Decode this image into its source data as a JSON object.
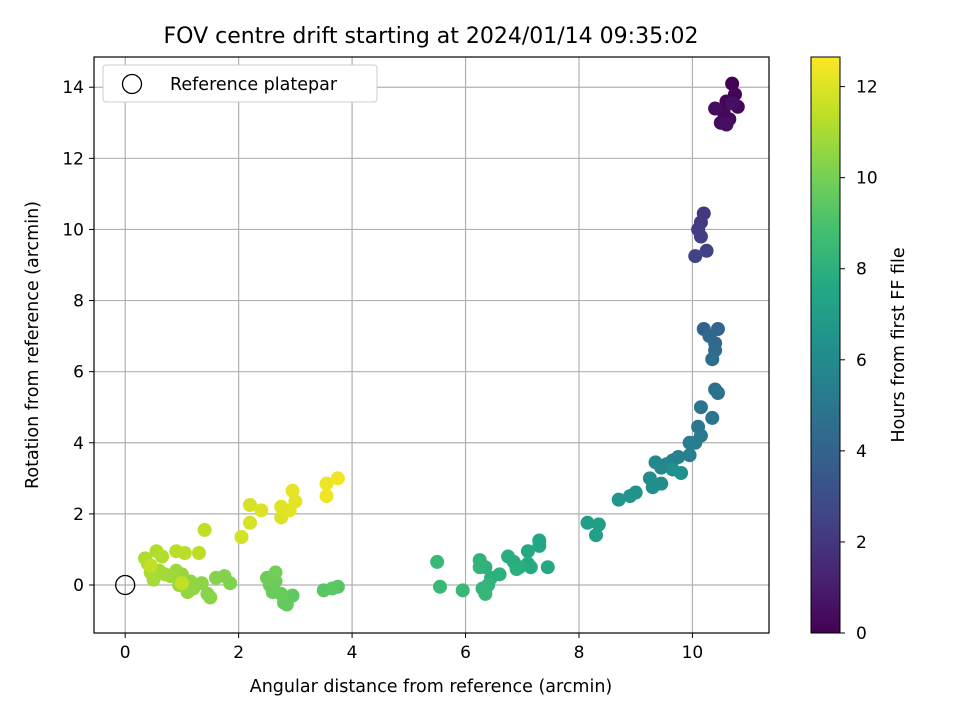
{
  "chart_data": {
    "type": "scatter",
    "title": "FOV centre drift starting at 2024/01/14 09:35:02",
    "xlabel": "Angular distance from reference (arcmin)",
    "ylabel": "Rotation from reference (arcmin)",
    "xlim": [
      -0.55,
      11.35
    ],
    "ylim": [
      -1.35,
      14.85
    ],
    "xticks": [
      0,
      2,
      4,
      6,
      8,
      10
    ],
    "yticks": [
      0,
      2,
      4,
      6,
      8,
      10,
      12,
      14
    ],
    "grid": true,
    "legend": {
      "placement": "top-left",
      "entries": [
        "Reference platepar"
      ]
    },
    "reference": {
      "x": 0,
      "y": 0
    },
    "colorbar": {
      "label": "Hours from first FF file",
      "range": [
        0,
        12.65
      ],
      "ticks": [
        0,
        2,
        4,
        6,
        8,
        10,
        12
      ],
      "colormap": "viridis"
    },
    "points": [
      {
        "x": 10.7,
        "y": 14.1,
        "h": 0.0
      },
      {
        "x": 10.75,
        "y": 13.8,
        "h": 0.1
      },
      {
        "x": 10.6,
        "y": 13.6,
        "h": 0.15
      },
      {
        "x": 10.8,
        "y": 13.45,
        "h": 0.2
      },
      {
        "x": 10.55,
        "y": 13.3,
        "h": 0.25
      },
      {
        "x": 10.65,
        "y": 13.1,
        "h": 0.3
      },
      {
        "x": 10.5,
        "y": 13.0,
        "h": 0.35
      },
      {
        "x": 10.4,
        "y": 13.4,
        "h": 0.45
      },
      {
        "x": 10.6,
        "y": 12.95,
        "h": 0.5
      },
      {
        "x": 10.7,
        "y": 13.55,
        "h": 0.55
      },
      {
        "x": 10.2,
        "y": 10.45,
        "h": 2.0
      },
      {
        "x": 10.15,
        "y": 10.2,
        "h": 2.1
      },
      {
        "x": 10.1,
        "y": 10.0,
        "h": 2.2
      },
      {
        "x": 10.15,
        "y": 9.8,
        "h": 2.3
      },
      {
        "x": 10.25,
        "y": 9.4,
        "h": 2.4
      },
      {
        "x": 10.05,
        "y": 9.25,
        "h": 2.5
      },
      {
        "x": 10.2,
        "y": 7.2,
        "h": 4.0
      },
      {
        "x": 10.45,
        "y": 7.2,
        "h": 4.1
      },
      {
        "x": 10.3,
        "y": 7.0,
        "h": 4.2
      },
      {
        "x": 10.4,
        "y": 6.8,
        "h": 4.3
      },
      {
        "x": 10.4,
        "y": 6.6,
        "h": 4.4
      },
      {
        "x": 10.35,
        "y": 6.35,
        "h": 4.5
      },
      {
        "x": 10.4,
        "y": 5.5,
        "h": 4.6
      },
      {
        "x": 10.45,
        "y": 5.4,
        "h": 4.7
      },
      {
        "x": 10.15,
        "y": 5.0,
        "h": 4.8
      },
      {
        "x": 10.35,
        "y": 4.7,
        "h": 4.9
      },
      {
        "x": 10.1,
        "y": 4.45,
        "h": 5.0
      },
      {
        "x": 10.15,
        "y": 4.2,
        "h": 5.1
      },
      {
        "x": 10.05,
        "y": 4.0,
        "h": 5.2
      },
      {
        "x": 9.95,
        "y": 4.0,
        "h": 5.3
      },
      {
        "x": 9.95,
        "y": 3.65,
        "h": 5.4
      },
      {
        "x": 9.75,
        "y": 3.6,
        "h": 5.5
      },
      {
        "x": 9.65,
        "y": 3.5,
        "h": 5.6
      },
      {
        "x": 9.55,
        "y": 3.4,
        "h": 5.7
      },
      {
        "x": 9.45,
        "y": 3.3,
        "h": 5.8
      },
      {
        "x": 9.35,
        "y": 3.45,
        "h": 5.9
      },
      {
        "x": 9.25,
        "y": 3.0,
        "h": 6.0
      },
      {
        "x": 9.45,
        "y": 2.85,
        "h": 6.1
      },
      {
        "x": 9.3,
        "y": 2.75,
        "h": 6.2
      },
      {
        "x": 9.65,
        "y": 3.25,
        "h": 6.25
      },
      {
        "x": 9.8,
        "y": 3.15,
        "h": 6.3
      },
      {
        "x": 9.0,
        "y": 2.6,
        "h": 6.4
      },
      {
        "x": 8.9,
        "y": 2.5,
        "h": 6.5
      },
      {
        "x": 8.7,
        "y": 2.4,
        "h": 6.6
      },
      {
        "x": 8.15,
        "y": 1.75,
        "h": 7.0
      },
      {
        "x": 8.35,
        "y": 1.7,
        "h": 7.05
      },
      {
        "x": 8.3,
        "y": 1.4,
        "h": 7.1
      },
      {
        "x": 7.3,
        "y": 1.25,
        "h": 7.5
      },
      {
        "x": 7.3,
        "y": 1.1,
        "h": 7.55
      },
      {
        "x": 7.1,
        "y": 0.95,
        "h": 7.6
      },
      {
        "x": 7.45,
        "y": 0.5,
        "h": 7.65
      },
      {
        "x": 7.1,
        "y": 0.6,
        "h": 7.7
      },
      {
        "x": 7.15,
        "y": 0.5,
        "h": 7.75
      },
      {
        "x": 6.95,
        "y": 0.5,
        "h": 7.8
      },
      {
        "x": 6.85,
        "y": 0.65,
        "h": 7.85
      },
      {
        "x": 6.75,
        "y": 0.8,
        "h": 7.9
      },
      {
        "x": 6.9,
        "y": 0.45,
        "h": 7.95
      },
      {
        "x": 6.6,
        "y": 0.3,
        "h": 8.0
      },
      {
        "x": 6.45,
        "y": 0.2,
        "h": 8.05
      },
      {
        "x": 6.25,
        "y": 0.7,
        "h": 8.1
      },
      {
        "x": 6.35,
        "y": 0.5,
        "h": 8.15
      },
      {
        "x": 6.25,
        "y": 0.5,
        "h": 8.2
      },
      {
        "x": 6.4,
        "y": 0.0,
        "h": 8.25
      },
      {
        "x": 6.3,
        "y": -0.1,
        "h": 8.3
      },
      {
        "x": 6.35,
        "y": -0.25,
        "h": 8.35
      },
      {
        "x": 5.95,
        "y": -0.15,
        "h": 8.4
      },
      {
        "x": 5.55,
        "y": -0.05,
        "h": 8.45
      },
      {
        "x": 5.5,
        "y": 0.65,
        "h": 8.5
      },
      {
        "x": 3.75,
        "y": -0.05,
        "h": 9.3
      },
      {
        "x": 3.5,
        "y": -0.15,
        "h": 9.35
      },
      {
        "x": 3.65,
        "y": -0.1,
        "h": 9.4
      },
      {
        "x": 2.95,
        "y": -0.3,
        "h": 9.5
      },
      {
        "x": 2.8,
        "y": -0.5,
        "h": 9.55
      },
      {
        "x": 2.85,
        "y": -0.55,
        "h": 9.6
      },
      {
        "x": 2.75,
        "y": -0.25,
        "h": 9.65
      },
      {
        "x": 2.6,
        "y": -0.2,
        "h": 9.7
      },
      {
        "x": 2.55,
        "y": 0.0,
        "h": 9.75
      },
      {
        "x": 2.65,
        "y": 0.1,
        "h": 9.8
      },
      {
        "x": 2.5,
        "y": 0.2,
        "h": 9.85
      },
      {
        "x": 2.65,
        "y": 0.35,
        "h": 9.9
      },
      {
        "x": 1.85,
        "y": 0.05,
        "h": 10.2
      },
      {
        "x": 1.75,
        "y": 0.25,
        "h": 10.25
      },
      {
        "x": 1.6,
        "y": 0.2,
        "h": 10.3
      },
      {
        "x": 1.45,
        "y": -0.25,
        "h": 10.35
      },
      {
        "x": 1.5,
        "y": -0.35,
        "h": 10.4
      },
      {
        "x": 1.35,
        "y": 0.05,
        "h": 10.45
      },
      {
        "x": 1.2,
        "y": -0.1,
        "h": 10.5
      },
      {
        "x": 1.15,
        "y": 0.1,
        "h": 10.55
      },
      {
        "x": 1.1,
        "y": -0.2,
        "h": 10.6
      },
      {
        "x": 1.0,
        "y": 0.3,
        "h": 10.65
      },
      {
        "x": 0.95,
        "y": 0.0,
        "h": 10.7
      },
      {
        "x": 0.9,
        "y": 0.4,
        "h": 10.75
      },
      {
        "x": 0.8,
        "y": 0.25,
        "h": 10.8
      },
      {
        "x": 0.7,
        "y": 0.3,
        "h": 10.85
      },
      {
        "x": 0.6,
        "y": 0.4,
        "h": 10.9
      },
      {
        "x": 0.5,
        "y": 0.15,
        "h": 10.95
      },
      {
        "x": 0.45,
        "y": 0.35,
        "h": 11.0
      },
      {
        "x": 0.4,
        "y": 0.6,
        "h": 11.05
      },
      {
        "x": 0.35,
        "y": 0.75,
        "h": 11.1
      },
      {
        "x": 0.55,
        "y": 0.95,
        "h": 11.15
      },
      {
        "x": 0.65,
        "y": 0.8,
        "h": 11.2
      },
      {
        "x": 0.9,
        "y": 0.95,
        "h": 11.25
      },
      {
        "x": 1.05,
        "y": 0.9,
        "h": 11.3
      },
      {
        "x": 1.3,
        "y": 0.9,
        "h": 11.35
      },
      {
        "x": 1.4,
        "y": 1.55,
        "h": 11.4
      },
      {
        "x": 0.45,
        "y": 0.55,
        "h": 11.45
      },
      {
        "x": 1.0,
        "y": 0.05,
        "h": 11.5
      },
      {
        "x": 2.05,
        "y": 1.35,
        "h": 11.8
      },
      {
        "x": 2.2,
        "y": 1.75,
        "h": 11.85
      },
      {
        "x": 2.2,
        "y": 2.25,
        "h": 11.9
      },
      {
        "x": 2.4,
        "y": 2.1,
        "h": 11.95
      },
      {
        "x": 2.75,
        "y": 1.9,
        "h": 12.0
      },
      {
        "x": 2.75,
        "y": 2.2,
        "h": 12.05
      },
      {
        "x": 2.9,
        "y": 2.1,
        "h": 12.1
      },
      {
        "x": 3.0,
        "y": 2.35,
        "h": 12.15
      },
      {
        "x": 2.95,
        "y": 2.65,
        "h": 12.2
      },
      {
        "x": 3.55,
        "y": 2.85,
        "h": 12.3
      },
      {
        "x": 3.55,
        "y": 2.5,
        "h": 12.35
      },
      {
        "x": 3.75,
        "y": 3.0,
        "h": 12.4
      }
    ]
  }
}
